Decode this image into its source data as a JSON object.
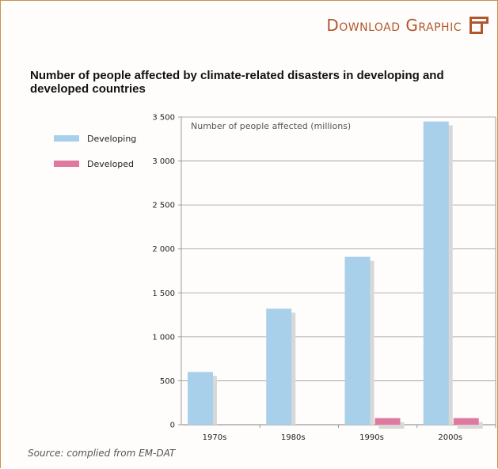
{
  "header": {
    "download_label": "Download Graphic"
  },
  "figure": {
    "title": "Number of people affected by climate-related disasters in developing and developed countries",
    "source": "Source: complied from EM-DAT"
  },
  "colors": {
    "developing": "#a9d0ea",
    "developed": "#e0799f",
    "shadow": "#d8d8d8",
    "grid": "#9a9a9a",
    "accent": "#b4562b",
    "frame": "#c8934a"
  },
  "chart_data": {
    "type": "bar",
    "title": "Number of people affected by climate-related disasters in developing and developed countries",
    "ylabel": "Number of people affected (millions)",
    "xlabel": "",
    "categories": [
      "1970s",
      "1980s",
      "1990s",
      "2000s"
    ],
    "series": [
      {
        "name": "Developing",
        "values": [
          600,
          1320,
          1910,
          3450
        ]
      },
      {
        "name": "Developed",
        "values": [
          0,
          0,
          75,
          75
        ]
      }
    ],
    "ylim": [
      0,
      3500
    ],
    "yticks": [
      0,
      500,
      1000,
      1500,
      2000,
      2500,
      3000,
      3500
    ],
    "ytick_labels": [
      "0",
      "500",
      "1 000",
      "1 500",
      "2 000",
      "2 500",
      "3 000",
      "3 500"
    ],
    "grid": true,
    "legend_position": "left"
  }
}
